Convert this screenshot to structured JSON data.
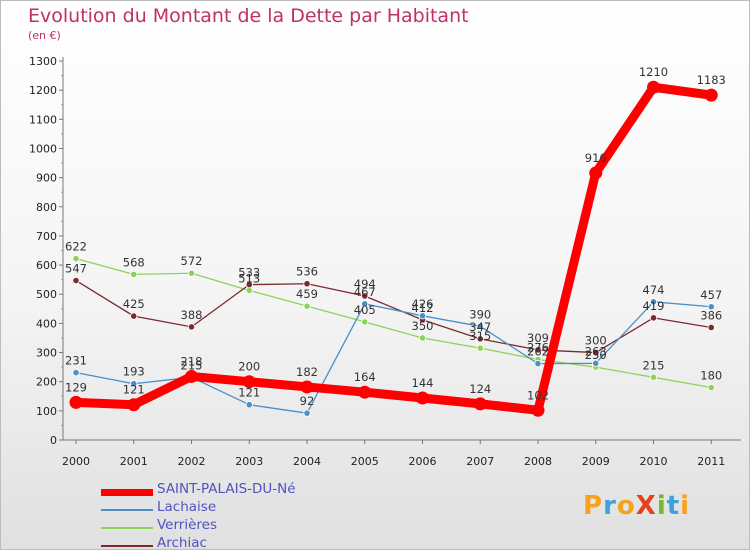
{
  "title": "Evolution du Montant de la Dette par Habitant",
  "subtitle": "(en €)",
  "logo": {
    "text": "ProXiti",
    "letters": [
      "P",
      "r",
      "o",
      "X",
      "i",
      "t",
      "i"
    ],
    "colors": [
      "#f7a21b",
      "#3aa2dc",
      "#f7a21b",
      "#e8401c",
      "#74b929",
      "#3aa2dc",
      "#f7a21b"
    ]
  },
  "chart_data": {
    "type": "line",
    "categories": [
      "2000",
      "2001",
      "2002",
      "2003",
      "2004",
      "2005",
      "2006",
      "2007",
      "2008",
      "2009",
      "2010",
      "2011"
    ],
    "ylim": [
      0,
      1300
    ],
    "yticks": [
      0,
      100,
      200,
      300,
      400,
      500,
      600,
      700,
      800,
      900,
      1000,
      1100,
      1200,
      1300
    ],
    "grid": false,
    "legend_position": "bottom-left",
    "series": [
      {
        "name": "Verrières",
        "color": "#8dd35a",
        "values": [
          622,
          568,
          572,
          513,
          459,
          405,
          350,
          315,
          276,
          250,
          215,
          180
        ],
        "labels": [
          "622",
          "568",
          "572",
          "513",
          "459",
          "405",
          "350",
          "315",
          "276",
          "250",
          "215",
          "180"
        ]
      },
      {
        "name": "Archiac",
        "color": "#7b2b30",
        "values": [
          547,
          425,
          388,
          533,
          536,
          494,
          412,
          347,
          309,
          300,
          419,
          386
        ],
        "labels": [
          "547",
          "425",
          "388",
          "533",
          "536",
          "494",
          "412",
          "347",
          "309",
          "300",
          "419",
          "386"
        ]
      },
      {
        "name": "Lachaise",
        "color": "#4a8fc8",
        "values": [
          231,
          193,
          215,
          121,
          92,
          467,
          426,
          390,
          262,
          263,
          474,
          457
        ],
        "labels": [
          "231",
          "193",
          "215",
          "121",
          "92",
          "467",
          "426",
          "390",
          "262",
          "263",
          "474",
          "457"
        ]
      },
      {
        "name": "SAINT-PALAIS-DU-Né",
        "color": "#ff0000",
        "values": [
          129,
          121,
          218,
          200,
          182,
          164,
          144,
          124,
          102,
          916,
          1210,
          1183
        ],
        "labels": [
          "129",
          "121",
          "218",
          "200",
          "182",
          "164",
          "144",
          "124",
          "102",
          "916",
          "1210",
          "1183"
        ]
      }
    ],
    "legend": [
      "SAINT-PALAIS-DU-Né",
      "Lachaise",
      "Verrières",
      "Archiac"
    ]
  }
}
